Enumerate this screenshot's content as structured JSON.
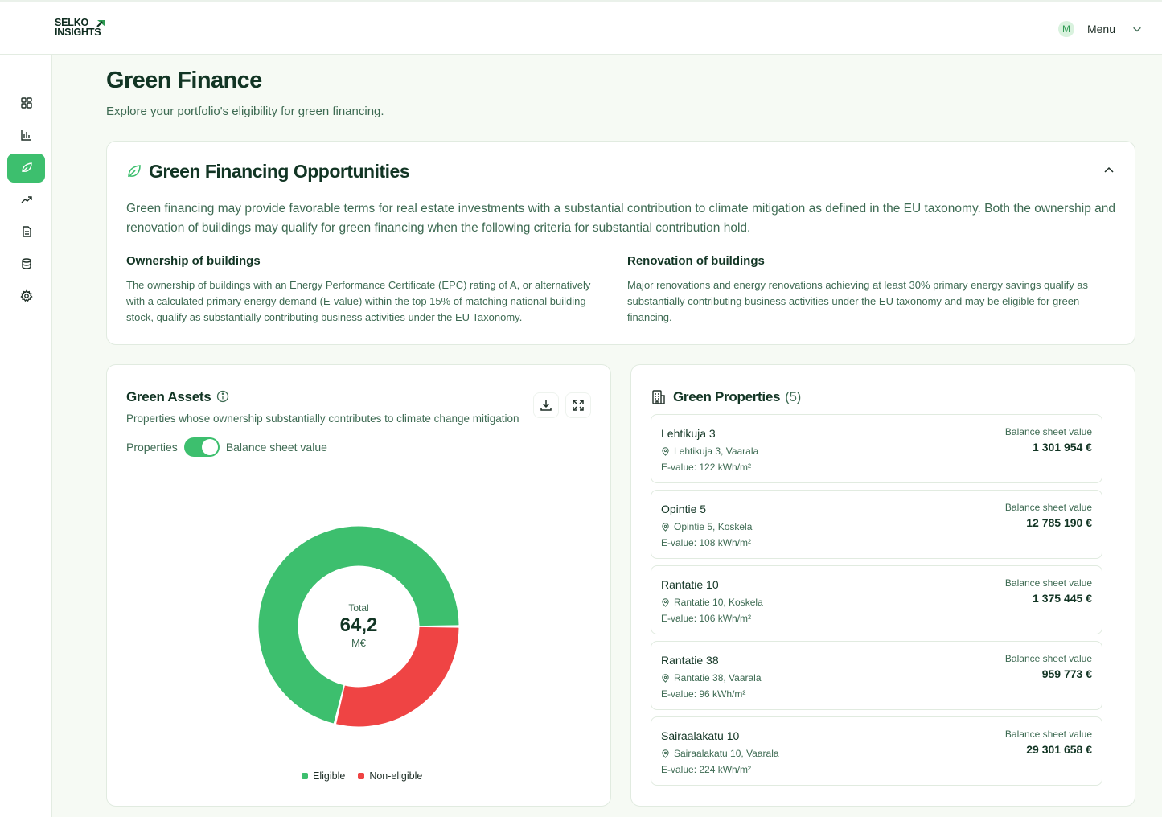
{
  "brand": {
    "line1": "SELKO",
    "line2": "INSIGHTS"
  },
  "user": {
    "initial": "M",
    "menu_label": "Menu"
  },
  "nav": [
    {
      "name": "dashboard-icon"
    },
    {
      "name": "bar-chart-icon"
    },
    {
      "name": "leaf-icon",
      "active": true
    },
    {
      "name": "trending-up-icon"
    },
    {
      "name": "document-icon"
    },
    {
      "name": "database-icon"
    },
    {
      "name": "settings-icon"
    }
  ],
  "page": {
    "title": "Green Finance",
    "subtitle": "Explore your portfolio's eligibility for green financing."
  },
  "opportunities": {
    "title": "Green Financing Opportunities",
    "intro": "Green financing may provide favorable terms for real estate investments with a substantial contribution to climate mitigation as defined in the EU taxonomy. Both the ownership and renovation of buildings may qualify for green financing when the following criteria for substantial contribution hold.",
    "ownership": {
      "title": "Ownership of buildings",
      "text": "The ownership of buildings with an Energy Performance Certificate (EPC) rating of A, or alternatively with a calculated primary energy demand (E-value) within the top 15% of matching national building stock, qualify as substantially contributing business activities under the EU Taxonomy."
    },
    "renovation": {
      "title": "Renovation of buildings",
      "text": "Major renovations and energy renovations achieving at least 30% primary energy savings qualify as substantially contributing business activities under the EU taxonomy and may be eligible for green financing."
    }
  },
  "assets": {
    "title": "Green Assets",
    "subtitle": "Properties whose ownership substantially contributes to climate change mitigation",
    "toggle_left": "Properties",
    "toggle_right": "Balance sheet value",
    "toggle_on": true,
    "total_label": "Total",
    "total_value": "64,2",
    "total_unit": "M€"
  },
  "chart_data": {
    "type": "pie",
    "categories": [
      "Eligible",
      "Non-eligible"
    ],
    "values": [
      45.7,
      18.5
    ],
    "colors": [
      "#3dbf6e",
      "#ef4444"
    ],
    "donut": true,
    "legend": "bottom"
  },
  "properties": {
    "title": "Green Properties",
    "count": "(5)",
    "value_label": "Balance sheet value",
    "items": [
      {
        "name": "Lehtikuja 3",
        "address": "Lehtikuja 3, Vaarala",
        "evalue": "E-value: 122 kWh/m²",
        "value": "1 301 954 €"
      },
      {
        "name": "Opintie 5",
        "address": "Opintie 5, Koskela",
        "evalue": "E-value: 108 kWh/m²",
        "value": "12 785 190 €"
      },
      {
        "name": "Rantatie 10",
        "address": "Rantatie 10, Koskela",
        "evalue": "E-value: 106 kWh/m²",
        "value": "1 375 445 €"
      },
      {
        "name": "Rantatie 38",
        "address": "Rantatie 38, Vaarala",
        "evalue": "E-value: 96 kWh/m²",
        "value": "959 773 €"
      },
      {
        "name": "Sairaalakatu 10",
        "address": "Sairaalakatu 10, Vaarala",
        "evalue": "E-value: 224 kWh/m²",
        "value": "29 301 658 €"
      }
    ]
  }
}
